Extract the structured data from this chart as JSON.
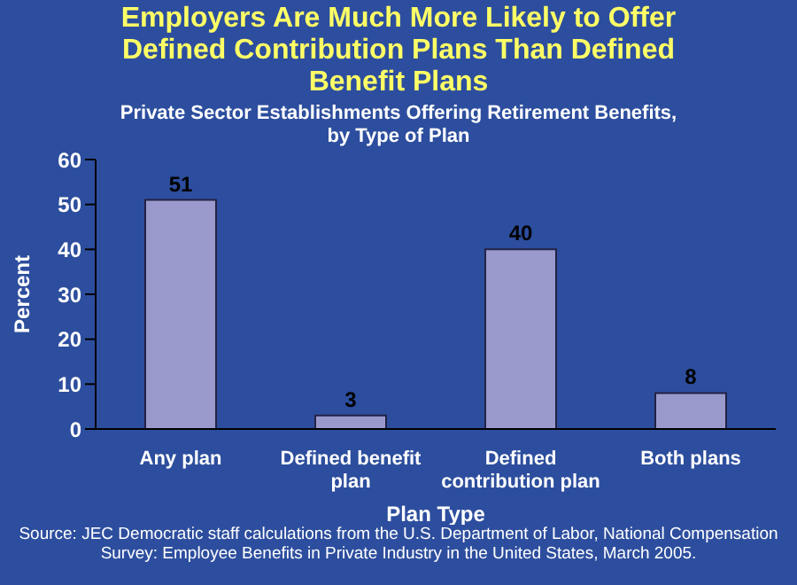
{
  "chart_data": {
    "type": "bar",
    "title": "Employers Are Much More Likely to Offer Defined Contribution Plans Than Defined Benefit Plans",
    "subtitle": "Private Sector Establishments Offering Retirement Benefits, by Type of Plan",
    "xlabel": "Plan Type",
    "ylabel": "Percent",
    "categories": [
      "Any plan",
      "Defined benefit plan",
      "Defined contribution plan",
      "Both plans"
    ],
    "values": [
      51,
      3,
      40,
      8
    ],
    "color": "#9999cc",
    "ylim": [
      0,
      60
    ],
    "yticks": [
      0,
      10,
      20,
      30,
      40,
      50,
      60
    ],
    "grid": false,
    "data_labels": true,
    "legend": false,
    "annotations": [
      "Source: JEC Democratic staff calculations from the U.S. Department of Labor, National Compensation Survey: Employee Benefits in Private Industry in the United States, March 2005."
    ]
  }
}
